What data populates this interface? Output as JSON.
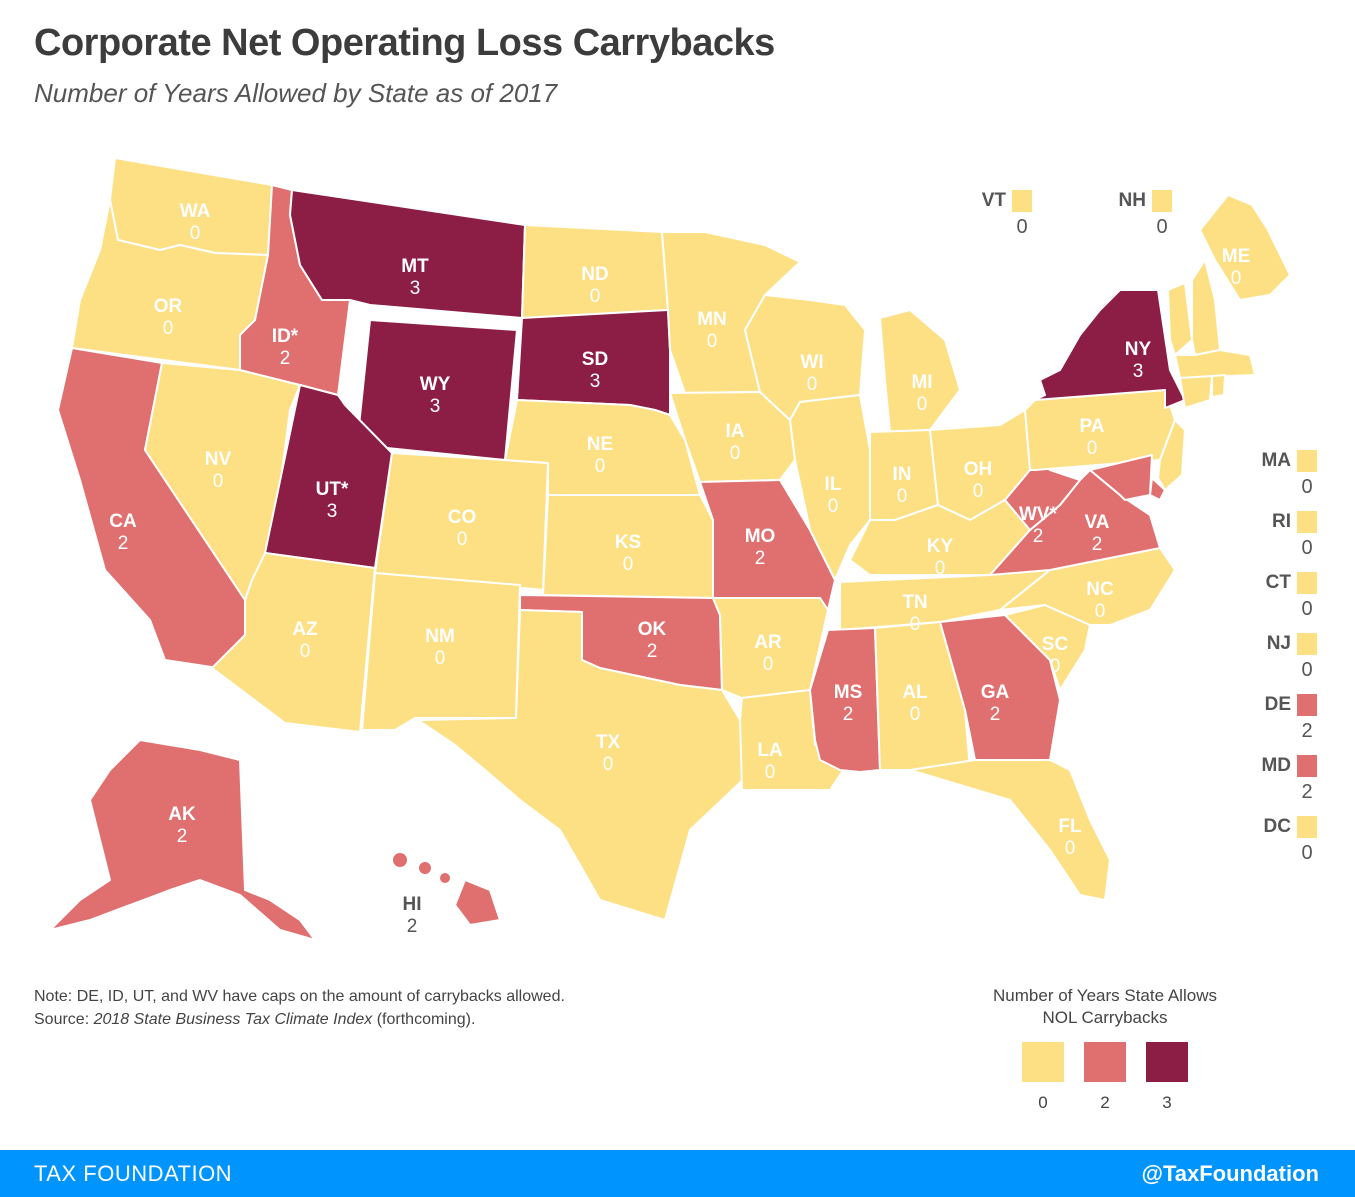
{
  "title": "Corporate Net Operating Loss Carrybacks",
  "subtitle": "Number of Years Allowed by State as of 2017",
  "colors": {
    "0": "#fddf84",
    "2": "#e06f6f",
    "3": "#8c1e46",
    "text": "#4a4a4a",
    "footer": "#0094ff"
  },
  "map": {
    "states": [
      {
        "abbr": "WA",
        "value": "0",
        "cap": false
      },
      {
        "abbr": "OR",
        "value": "0",
        "cap": false
      },
      {
        "abbr": "CA",
        "value": "2",
        "cap": false
      },
      {
        "abbr": "NV",
        "value": "0",
        "cap": false
      },
      {
        "abbr": "ID",
        "value": "2",
        "cap": true
      },
      {
        "abbr": "MT",
        "value": "3",
        "cap": false
      },
      {
        "abbr": "WY",
        "value": "3",
        "cap": false
      },
      {
        "abbr": "UT",
        "value": "3",
        "cap": true
      },
      {
        "abbr": "AZ",
        "value": "0",
        "cap": false
      },
      {
        "abbr": "CO",
        "value": "0",
        "cap": false
      },
      {
        "abbr": "NM",
        "value": "0",
        "cap": false
      },
      {
        "abbr": "ND",
        "value": "0",
        "cap": false
      },
      {
        "abbr": "SD",
        "value": "3",
        "cap": false
      },
      {
        "abbr": "NE",
        "value": "0",
        "cap": false
      },
      {
        "abbr": "KS",
        "value": "0",
        "cap": false
      },
      {
        "abbr": "OK",
        "value": "2",
        "cap": false
      },
      {
        "abbr": "TX",
        "value": "0",
        "cap": false
      },
      {
        "abbr": "MN",
        "value": "0",
        "cap": false
      },
      {
        "abbr": "IA",
        "value": "0",
        "cap": false
      },
      {
        "abbr": "MO",
        "value": "2",
        "cap": false
      },
      {
        "abbr": "AR",
        "value": "0",
        "cap": false
      },
      {
        "abbr": "LA",
        "value": "0",
        "cap": false
      },
      {
        "abbr": "WI",
        "value": "0",
        "cap": false
      },
      {
        "abbr": "IL",
        "value": "0",
        "cap": false
      },
      {
        "abbr": "MI",
        "value": "0",
        "cap": false
      },
      {
        "abbr": "IN",
        "value": "0",
        "cap": false
      },
      {
        "abbr": "OH",
        "value": "0",
        "cap": false
      },
      {
        "abbr": "KY",
        "value": "0",
        "cap": false
      },
      {
        "abbr": "TN",
        "value": "0",
        "cap": false
      },
      {
        "abbr": "MS",
        "value": "2",
        "cap": false
      },
      {
        "abbr": "AL",
        "value": "0",
        "cap": false
      },
      {
        "abbr": "GA",
        "value": "2",
        "cap": false
      },
      {
        "abbr": "FL",
        "value": "0",
        "cap": false
      },
      {
        "abbr": "SC",
        "value": "0",
        "cap": false
      },
      {
        "abbr": "NC",
        "value": "0",
        "cap": false
      },
      {
        "abbr": "VA",
        "value": "2",
        "cap": false
      },
      {
        "abbr": "WV",
        "value": "2",
        "cap": true
      },
      {
        "abbr": "PA",
        "value": "0",
        "cap": false
      },
      {
        "abbr": "NY",
        "value": "3",
        "cap": false
      },
      {
        "abbr": "ME",
        "value": "0",
        "cap": false
      },
      {
        "abbr": "AK",
        "value": "2",
        "cap": false
      },
      {
        "abbr": "HI",
        "value": "2",
        "cap": false
      }
    ],
    "small_states": [
      {
        "abbr": "VT",
        "value": "0"
      },
      {
        "abbr": "NH",
        "value": "0"
      },
      {
        "abbr": "MA",
        "value": "0"
      },
      {
        "abbr": "RI",
        "value": "0"
      },
      {
        "abbr": "CT",
        "value": "0"
      },
      {
        "abbr": "NJ",
        "value": "0"
      },
      {
        "abbr": "DE",
        "value": "2"
      },
      {
        "abbr": "MD",
        "value": "2"
      },
      {
        "abbr": "DC",
        "value": "0"
      }
    ]
  },
  "note": {
    "line1": "Note: DE, ID, UT, and WV have caps on the amount of carrybacks allowed.",
    "source_prefix": "Source: ",
    "source_title": "2018 State Business Tax Climate Index",
    "source_suffix": " (forthcoming)."
  },
  "legend": {
    "title_line1": "Number of Years State Allows",
    "title_line2": "NOL Carrybacks",
    "items": [
      {
        "label": "0",
        "value": "0"
      },
      {
        "label": "2",
        "value": "2"
      },
      {
        "label": "3",
        "value": "3"
      }
    ]
  },
  "footer": {
    "left": "TAX FOUNDATION",
    "right": "@TaxFoundation"
  }
}
